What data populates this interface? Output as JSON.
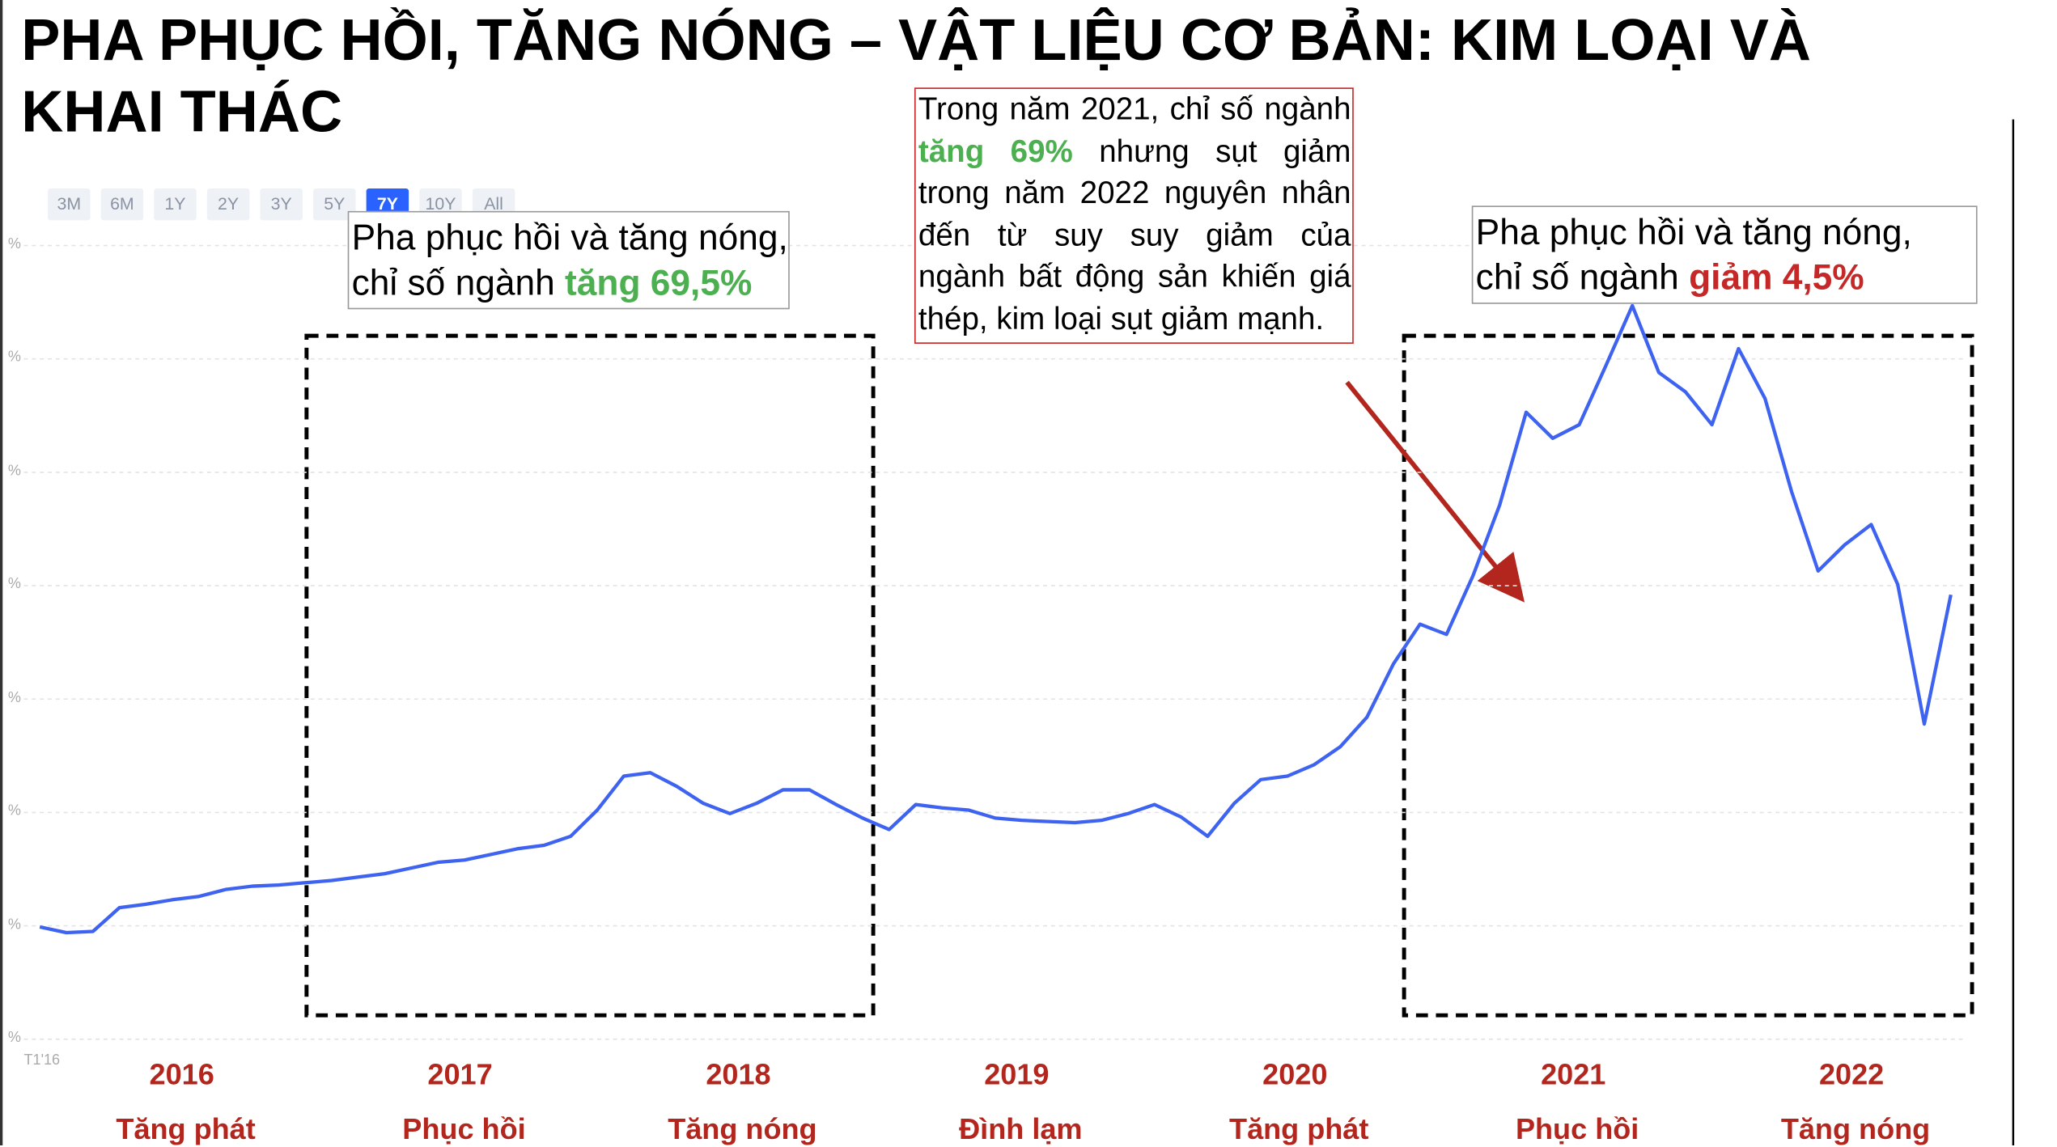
{
  "title": "PHA PHỤC HỒI, TĂNG NÓNG – VẬT LIỆU CƠ BẢN: KIM LOẠI VÀ KHAI THÁC",
  "range_buttons": [
    "3M",
    "6M",
    "1Y",
    "2Y",
    "3Y",
    "5Y",
    "7Y",
    "10Y",
    "All"
  ],
  "active_range": "7Y",
  "annotation_left": {
    "line1": "Pha phục hồi và tăng nóng,",
    "prefix": "chỉ số ngành ",
    "highlight": "tăng 69,5%"
  },
  "annotation_right": {
    "line1": "Pha phục hồi và tăng nóng,",
    "prefix": "chỉ số ngành ",
    "highlight": "giảm 4,5%"
  },
  "annotation_note": {
    "prefix": "Trong năm 2021, chỉ số ngành ",
    "highlight": "tăng 69%",
    "suffix": " nhưng sụt giảm trong năm 2022 nguyên nhân đến từ suy suy giảm của ngành bất động sản khiến giá thép, kim loại sụt giảm mạnh."
  },
  "periods": [
    {
      "year": "2016",
      "phase": "Tăng phát"
    },
    {
      "year": "2017",
      "phase": "Phục hồi"
    },
    {
      "year": "2018",
      "phase": "Tăng nóng"
    },
    {
      "year": "2019",
      "phase": "Đình lạm"
    },
    {
      "year": "2020",
      "phase": "Tăng phát"
    },
    {
      "year": "2021",
      "phase": "Phục hồi"
    },
    {
      "year": "2022",
      "phase": "Tăng nóng"
    }
  ],
  "chart_data": {
    "type": "line",
    "color": "#3d63f0",
    "x_start_label": "T1'16",
    "grid": true,
    "ylim": [
      0,
      7
    ],
    "yticks": [
      {
        "value": 0,
        "label": "%"
      },
      {
        "value": 1,
        "label": "%"
      },
      {
        "value": 2,
        "label": "%"
      },
      {
        "value": 3,
        "label": "%"
      },
      {
        "value": 4,
        "label": "%"
      },
      {
        "value": 5,
        "label": "%"
      },
      {
        "value": 6,
        "label": "%"
      },
      {
        "value": 7,
        "label": "%"
      }
    ],
    "values": [
      0.99,
      0.94,
      0.95,
      1.16,
      1.19,
      1.23,
      1.26,
      1.32,
      1.35,
      1.36,
      1.38,
      1.4,
      1.43,
      1.46,
      1.51,
      1.56,
      1.58,
      1.63,
      1.68,
      1.71,
      1.79,
      2.02,
      2.32,
      2.35,
      2.23,
      2.08,
      1.99,
      2.08,
      2.2,
      2.2,
      2.07,
      1.95,
      1.85,
      2.07,
      2.04,
      2.02,
      1.95,
      1.93,
      1.92,
      1.91,
      1.93,
      1.99,
      2.07,
      1.96,
      1.79,
      2.08,
      2.29,
      2.32,
      2.42,
      2.58,
      2.84,
      3.31,
      3.66,
      3.57,
      4.09,
      4.71,
      5.53,
      5.3,
      5.42,
      5.94,
      6.47,
      5.88,
      5.71,
      5.42,
      6.09,
      5.65,
      4.83,
      4.13,
      4.36,
      4.54,
      4.01,
      2.78,
      3.92
    ]
  }
}
